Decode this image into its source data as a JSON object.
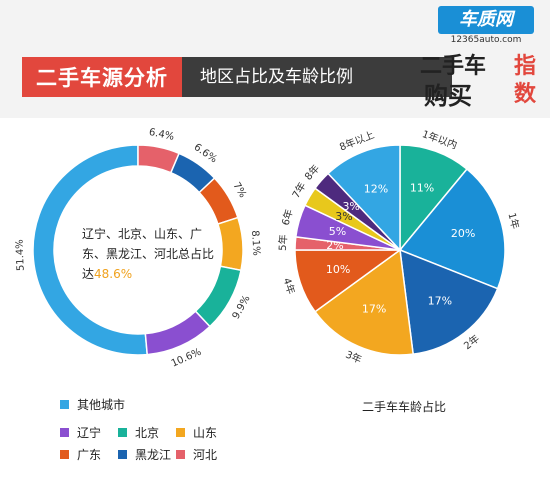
{
  "header": {
    "title": "二手车源分析",
    "subtitle": "地区占比及车龄比例"
  },
  "logo": {
    "brand": "车质网",
    "url": "12365auto.com",
    "line1": "二手车",
    "line1_accent": "指",
    "line2": "购买",
    "line2_accent": "数"
  },
  "chart_data": [
    {
      "type": "pie",
      "style": "donut",
      "title": "",
      "center_text": "辽宁、北京、山东、广东、黑龙江、河北总占比达",
      "center_value": "48.6%",
      "slices": [
        {
          "name": "其他城市",
          "value": 51.4,
          "label": "51.4%",
          "color": "#33a6e3"
        },
        {
          "name": "河北",
          "value": 6.4,
          "label": "6.4%",
          "color": "#e5616a"
        },
        {
          "name": "黑龙江",
          "value": 6.6,
          "label": "6.6%",
          "color": "#1b64b0"
        },
        {
          "name": "广东",
          "value": 7.0,
          "label": "7%",
          "color": "#e25a1c"
        },
        {
          "name": "山东",
          "value": 8.1,
          "label": "8.1%",
          "color": "#f3a720"
        },
        {
          "name": "北京",
          "value": 9.9,
          "label": "9.9%",
          "color": "#19b29a"
        },
        {
          "name": "辽宁",
          "value": 10.6,
          "label": "10.6%",
          "color": "#8a4fd0"
        }
      ]
    },
    {
      "type": "pie",
      "title": "二手车车龄占比",
      "slices": [
        {
          "name": "1年以内",
          "value": 11,
          "label": "11%",
          "color": "#19b29a"
        },
        {
          "name": "1年",
          "value": 20,
          "label": "20%",
          "color": "#1a8fd6"
        },
        {
          "name": "2年",
          "value": 17,
          "label": "17%",
          "color": "#1b64b0"
        },
        {
          "name": "3年",
          "value": 17,
          "label": "17%",
          "color": "#f3a720"
        },
        {
          "name": "4年",
          "value": 10,
          "label": "10%",
          "color": "#e25a1c"
        },
        {
          "name": "5年",
          "value": 2,
          "label": "2%",
          "color": "#e5616a"
        },
        {
          "name": "6年",
          "value": 5,
          "label": "5%",
          "color": "#8a4fd0"
        },
        {
          "name": "7年",
          "value": 3,
          "label": "3%",
          "color": "#e8c81c"
        },
        {
          "name": "8年",
          "value": 3,
          "label": "3%",
          "color": "#4e2a7e"
        },
        {
          "name": "8年以上",
          "value": 12,
          "label": "12%",
          "color": "#33a6e3"
        }
      ]
    }
  ],
  "legend": [
    {
      "label": "其他城市",
      "color": "#33a6e3"
    },
    {
      "label": "辽宁",
      "color": "#8a4fd0"
    },
    {
      "label": "北京",
      "color": "#19b29a"
    },
    {
      "label": "山东",
      "color": "#f3a720"
    },
    {
      "label": "广东",
      "color": "#e25a1c"
    },
    {
      "label": "黑龙江",
      "color": "#1b64b0"
    },
    {
      "label": "河北",
      "color": "#e5616a"
    }
  ]
}
